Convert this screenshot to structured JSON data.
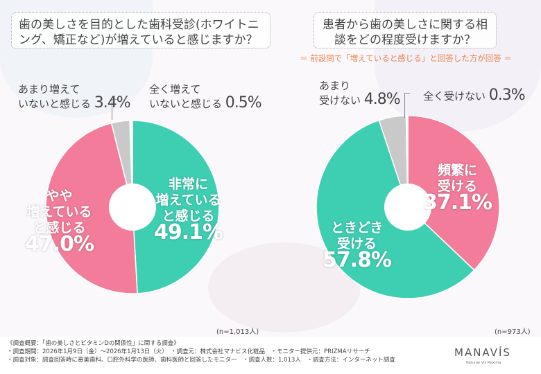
{
  "colors": {
    "teal": "#3ecfb3",
    "pink": "#f27c9a",
    "grey": "#c9c9c9",
    "white": "#ffffff",
    "accent": "#e9844d"
  },
  "chart_data": [
    {
      "type": "pie",
      "title": "歯の美しさを目的とした歯科受診(ホワイトニング、矯正など)が増えていると感じますか？",
      "note": "(n=1,013人)",
      "slices": [
        {
          "label": "非常に増えていると感じる",
          "value": 49.1,
          "pct": "49.1%",
          "color": "#3ecfb3"
        },
        {
          "label": "やや増えていると感じる",
          "value": 47.0,
          "pct": "47.0%",
          "color": "#f27c9a"
        },
        {
          "label": "あまり増えていないと感じる",
          "value": 3.4,
          "pct": "3.4%",
          "color": "#c9c9c9"
        },
        {
          "label": "全く増えていないと感じる",
          "value": 0.5,
          "pct": "0.5%",
          "color": "#ffffff"
        }
      ]
    },
    {
      "type": "pie",
      "title": "患者から歯の美しさに関する相談をどの程度受けますか？",
      "subtitle": "＝ 前設問で「増えていると感じる」と回答した方が回答 ＝",
      "note": "(n=973人)",
      "slices": [
        {
          "label": "頻繁に受ける",
          "value": 37.1,
          "pct": "37.1%",
          "color": "#f27c9a"
        },
        {
          "label": "ときどき受ける",
          "value": 57.8,
          "pct": "57.8%",
          "color": "#3ecfb3"
        },
        {
          "label": "あまり受けない",
          "value": 4.8,
          "pct": "4.8%",
          "color": "#c9c9c9"
        },
        {
          "label": "全く受けない",
          "value": 0.3,
          "pct": "0.3%",
          "color": "#ffffff"
        }
      ]
    }
  ],
  "labels": {
    "l1a": "あまり増えて",
    "l1b": "いないと感じる",
    "l2a": "全く増えて",
    "l2b": "いないと感じる",
    "in1a": "非常に",
    "in1b": "増えている",
    "in1c": "と感じる",
    "in2a": "やや",
    "in2b": "増えている",
    "in2c": "と感じる",
    "r1a": "あまり",
    "r1b": "受けない",
    "r2": "全く受けない",
    "in3a": "頻繁に",
    "in3b": "受ける",
    "in4a": "ときどき",
    "in4b": "受ける"
  },
  "footer": {
    "line1": "《調査概要：「歯の美しさとビタミンDの関係性」に関する調査》",
    "line2": "・調査期間：2026年1月9日（金）～2026年1月13日（火）　・調査元：株式会社マナビス化粧品　・モニター提供元：PRIZMAリサーチ",
    "line3": "・調査対象：調査回答時に審美歯科、口腔外科学の医師、歯科医師と回答したモニター　・調査人数：1,013人　・調査方法：インターネット調査",
    "logo": "MANAVÍS",
    "logo_sub": "Naturae Vis Maxima"
  }
}
